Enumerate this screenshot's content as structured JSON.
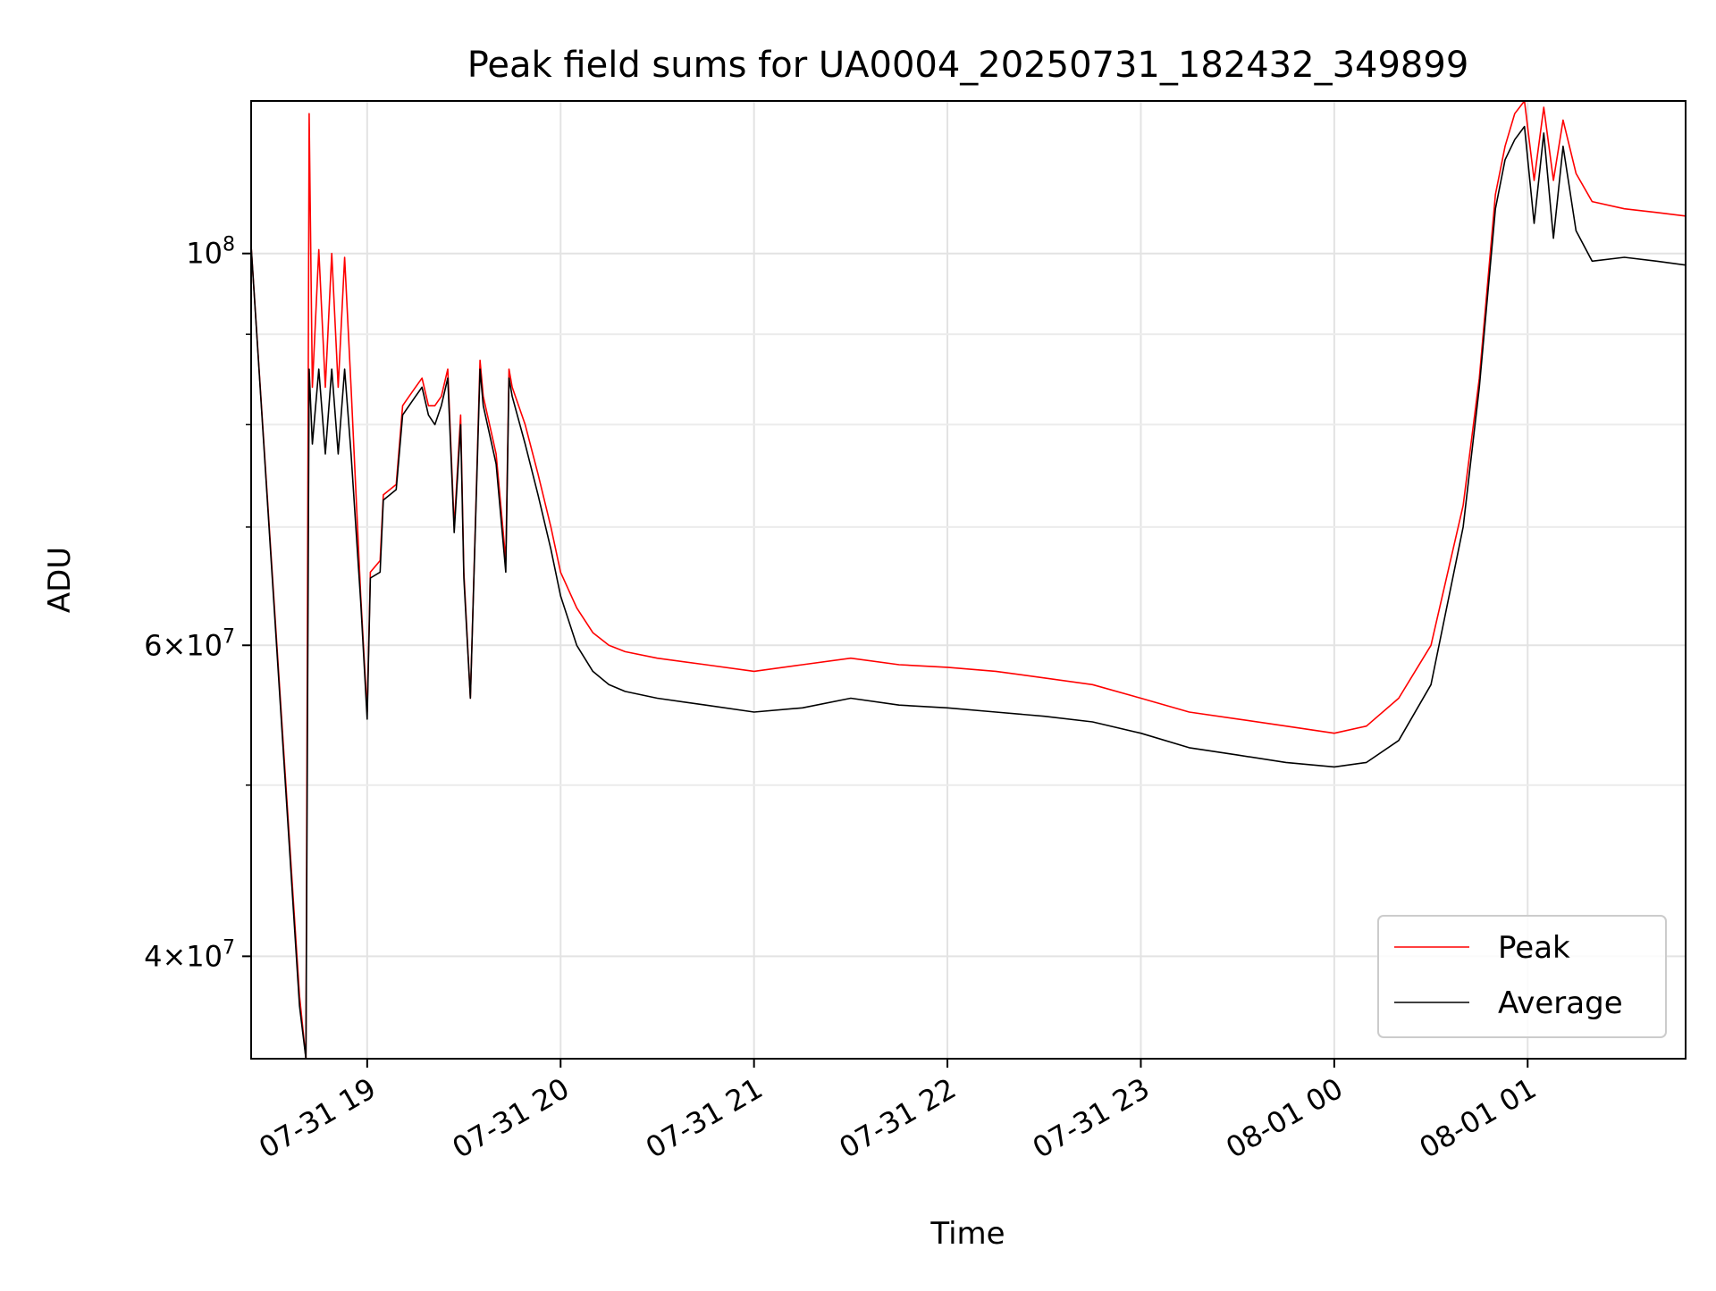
{
  "chart_data": {
    "type": "line",
    "title": "Peak field sums for UA0004_20250731_182432_349899",
    "xlabel": "Time",
    "ylabel": "ADU",
    "yscale": "log",
    "xlim": [
      "07-31 18:24",
      "08-01 01:49"
    ],
    "ylim": [
      35000000,
      122000000
    ],
    "grid": true,
    "legend_position": "lower right",
    "x_ticks": [
      {
        "label": "07-31 19",
        "value": "07-31 19:00"
      },
      {
        "label": "07-31 20",
        "value": "07-31 20:00"
      },
      {
        "label": "07-31 21",
        "value": "07-31 21:00"
      },
      {
        "label": "07-31 22",
        "value": "07-31 22:00"
      },
      {
        "label": "07-31 23",
        "value": "07-31 23:00"
      },
      {
        "label": "08-01 00",
        "value": "08-01 00:00"
      },
      {
        "label": "08-01 01",
        "value": "08-01 01:00"
      }
    ],
    "y_ticks": [
      {
        "base": "10",
        "exp": "8",
        "value": 100000000
      },
      {
        "base": "6×10",
        "exp": "7",
        "value": 60000000
      },
      {
        "base": "4×10",
        "exp": "7",
        "value": 40000000
      }
    ],
    "y_minor_ticks": [
      50000000,
      70000000,
      80000000,
      90000000
    ],
    "colors": {
      "peak": "#ff0000",
      "average": "#000000"
    },
    "series": [
      {
        "name": "Peak",
        "color": "#ff0000",
        "x": [
          "07-31 18:24",
          "07-31 18:39",
          "07-31 18:41",
          "07-31 18:42",
          "07-31 18:43",
          "07-31 18:45",
          "07-31 18:47",
          "07-31 18:49",
          "07-31 18:51",
          "07-31 18:53",
          "07-31 18:55",
          "07-31 18:58",
          "07-31 19:00",
          "07-31 19:01",
          "07-31 19:04",
          "07-31 19:05",
          "07-31 19:09",
          "07-31 19:11",
          "07-31 19:13",
          "07-31 19:15",
          "07-31 19:17",
          "07-31 19:19",
          "07-31 19:21",
          "07-31 19:23",
          "07-31 19:25",
          "07-31 19:27",
          "07-31 19:29",
          "07-31 19:30",
          "07-31 19:32",
          "07-31 19:35",
          "07-31 19:36",
          "07-31 19:40",
          "07-31 19:43",
          "07-31 19:44",
          "07-31 19:45",
          "07-31 19:49",
          "07-31 19:53",
          "07-31 19:57",
          "07-31 20:00",
          "07-31 20:05",
          "07-31 20:10",
          "07-31 20:15",
          "07-31 20:20",
          "07-31 20:30",
          "07-31 20:45",
          "07-31 21:00",
          "07-31 21:15",
          "07-31 21:30",
          "07-31 21:45",
          "07-31 22:00",
          "07-31 22:15",
          "07-31 22:30",
          "07-31 22:45",
          "07-31 23:00",
          "07-31 23:15",
          "07-31 23:30",
          "07-31 23:45",
          "08-01 00:00",
          "08-01 00:10",
          "08-01 00:20",
          "08-01 00:30",
          "08-01 00:40",
          "08-01 00:45",
          "08-01 00:50",
          "08-01 00:53",
          "08-01 00:56",
          "08-01 00:59",
          "08-01 01:02",
          "08-01 01:05",
          "08-01 01:08",
          "08-01 01:11",
          "08-01 01:15",
          "08-01 01:20",
          "08-01 01:30",
          "08-01 01:40",
          "08-01 01:49"
        ],
        "values": [
          101000000,
          38000000,
          35000000,
          120000000,
          84000000,
          100500000,
          84000000,
          100000000,
          84000000,
          99500000,
          84000000,
          64000000,
          55000000,
          66000000,
          67000000,
          73000000,
          74000000,
          82000000,
          83000000,
          84000000,
          85000000,
          82000000,
          82000000,
          83000000,
          86000000,
          70000000,
          81000000,
          66000000,
          56000000,
          87000000,
          83000000,
          77000000,
          67000000,
          86000000,
          84000000,
          80000000,
          75000000,
          70000000,
          66000000,
          63000000,
          61000000,
          60000000,
          59500000,
          59000000,
          58500000,
          58000000,
          58500000,
          59000000,
          58500000,
          58300000,
          58000000,
          57500000,
          57000000,
          56000000,
          55000000,
          54500000,
          54000000,
          53500000,
          54000000,
          56000000,
          60000000,
          72000000,
          85000000,
          108000000,
          115000000,
          120000000,
          122000000,
          110000000,
          121000000,
          110000000,
          119000000,
          111000000,
          107000000,
          106000000,
          105500000,
          105000000
        ]
      },
      {
        "name": "Average",
        "color": "#000000",
        "x": [
          "07-31 18:24",
          "07-31 18:39",
          "07-31 18:41",
          "07-31 18:42",
          "07-31 18:43",
          "07-31 18:45",
          "07-31 18:47",
          "07-31 18:49",
          "07-31 18:51",
          "07-31 18:53",
          "07-31 18:55",
          "07-31 18:58",
          "07-31 19:00",
          "07-31 19:01",
          "07-31 19:04",
          "07-31 19:05",
          "07-31 19:09",
          "07-31 19:11",
          "07-31 19:13",
          "07-31 19:15",
          "07-31 19:17",
          "07-31 19:19",
          "07-31 19:21",
          "07-31 19:23",
          "07-31 19:25",
          "07-31 19:27",
          "07-31 19:29",
          "07-31 19:30",
          "07-31 19:32",
          "07-31 19:35",
          "07-31 19:36",
          "07-31 19:40",
          "07-31 19:43",
          "07-31 19:44",
          "07-31 19:45",
          "07-31 19:49",
          "07-31 19:53",
          "07-31 19:57",
          "07-31 20:00",
          "07-31 20:05",
          "07-31 20:10",
          "07-31 20:15",
          "07-31 20:20",
          "07-31 20:30",
          "07-31 20:45",
          "07-31 21:00",
          "07-31 21:15",
          "07-31 21:30",
          "07-31 21:45",
          "07-31 22:00",
          "07-31 22:15",
          "07-31 22:30",
          "07-31 22:45",
          "07-31 23:00",
          "07-31 23:15",
          "07-31 23:30",
          "07-31 23:45",
          "08-01 00:00",
          "08-01 00:10",
          "08-01 00:20",
          "08-01 00:30",
          "08-01 00:40",
          "08-01 00:45",
          "08-01 00:50",
          "08-01 00:53",
          "08-01 00:56",
          "08-01 00:59",
          "08-01 01:02",
          "08-01 01:05",
          "08-01 01:08",
          "08-01 01:11",
          "08-01 01:15",
          "08-01 01:20",
          "08-01 01:30",
          "08-01 01:40",
          "08-01 01:49"
        ],
        "values": [
          101000000,
          37500000,
          35000000,
          86000000,
          78000000,
          86000000,
          77000000,
          86000000,
          77000000,
          86000000,
          77000000,
          63500000,
          54500000,
          65500000,
          66000000,
          72500000,
          73500000,
          81000000,
          82000000,
          83000000,
          84000000,
          81000000,
          80000000,
          82000000,
          85000000,
          69500000,
          80000000,
          65500000,
          56000000,
          86000000,
          82000000,
          76000000,
          66000000,
          85000000,
          83000000,
          78000000,
          73000000,
          68000000,
          64000000,
          60000000,
          58000000,
          57000000,
          56500000,
          56000000,
          55500000,
          55000000,
          55300000,
          56000000,
          55500000,
          55300000,
          55000000,
          54700000,
          54300000,
          53500000,
          52500000,
          52000000,
          51500000,
          51200000,
          51500000,
          53000000,
          57000000,
          70000000,
          84000000,
          106000000,
          113000000,
          116000000,
          118000000,
          104000000,
          117000000,
          102000000,
          115000000,
          103000000,
          99000000,
          99500000,
          99000000,
          98500000
        ]
      }
    ]
  }
}
